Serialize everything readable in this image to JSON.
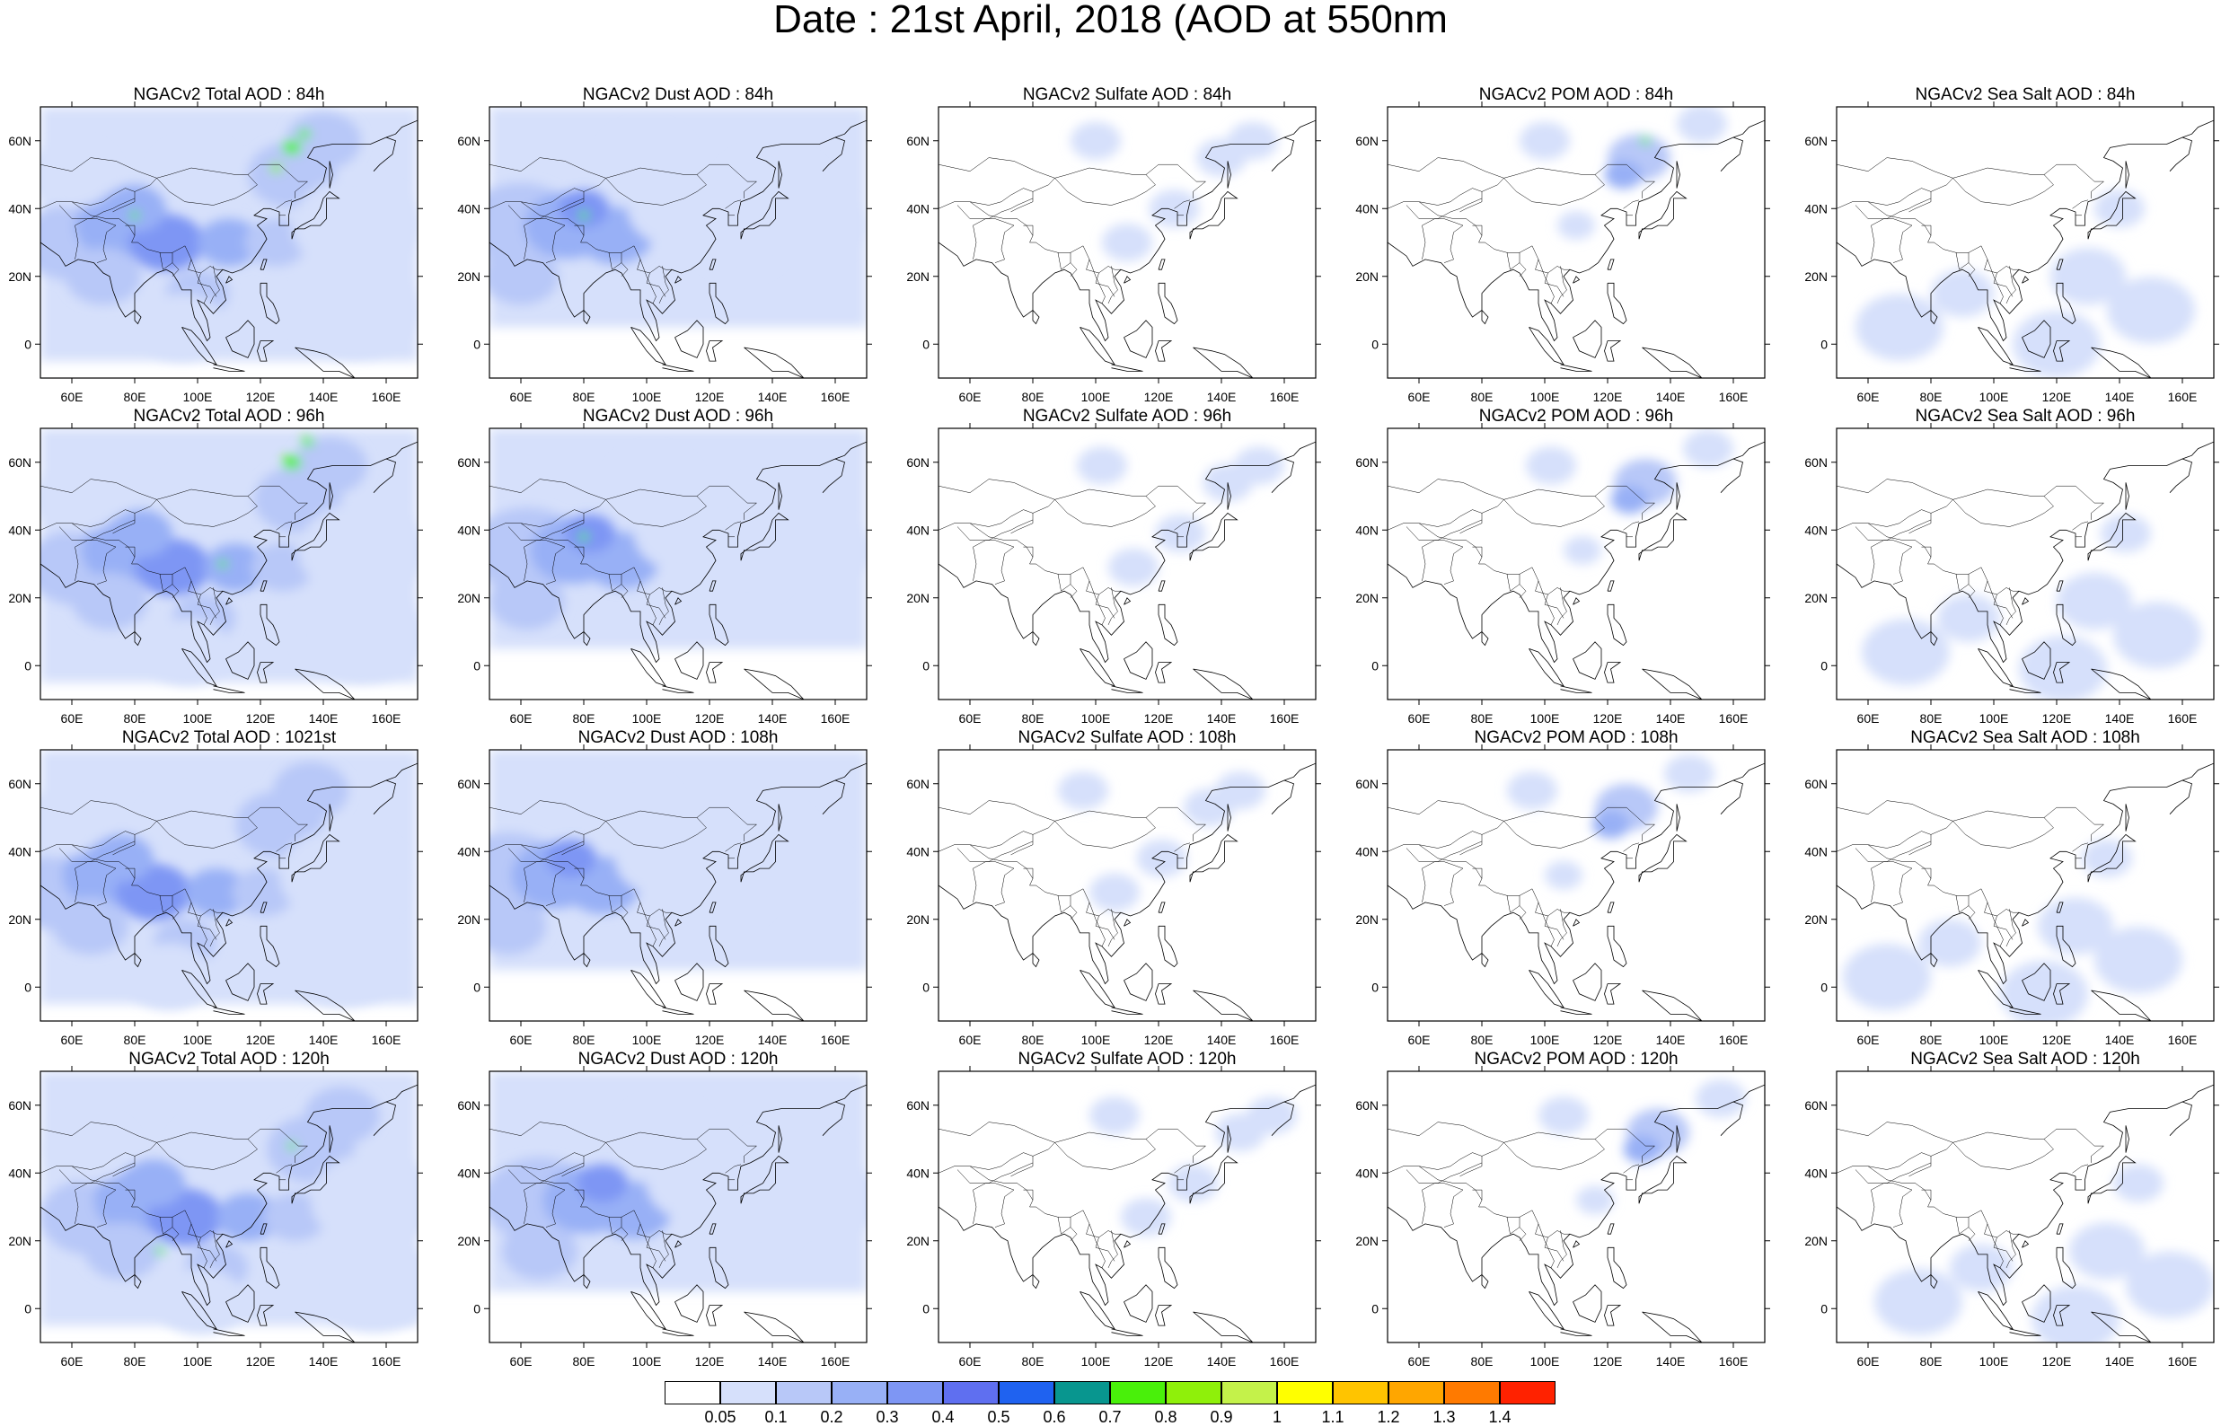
{
  "title": "Date : 21st April, 2018 (AOD at 550nm",
  "lon_ticks": [
    "60E",
    "80E",
    "100E",
    "120E",
    "140E",
    "160E"
  ],
  "lat_ticks": [
    "60N",
    "40N",
    "20N",
    "0"
  ],
  "panels": [
    [
      "NGACv2 Total AOD : 84h",
      "NGACv2 Dust AOD : 84h",
      "NGACv2 Sulfate AOD : 84h",
      "NGACv2 POM AOD : 84h",
      "NGACv2 Sea Salt AOD : 84h"
    ],
    [
      "NGACv2 Total AOD : 96h",
      "NGACv2 Dust AOD : 96h",
      "NGACv2 Sulfate AOD : 96h",
      "NGACv2 POM AOD : 96h",
      "NGACv2 Sea Salt AOD : 96h"
    ],
    [
      "NGACv2 Total AOD : 1021st",
      "NGACv2 Dust AOD : 108h",
      "NGACv2 Sulfate AOD : 108h",
      "NGACv2 POM AOD : 108h",
      "NGACv2 Sea Salt AOD : 108h"
    ],
    [
      "NGACv2 Total AOD : 120h",
      "NGACv2 Dust AOD : 120h",
      "NGACv2 Sulfate AOD : 120h",
      "NGACv2 POM AOD : 120h",
      "NGACv2 Sea Salt  AOD : 120h"
    ]
  ],
  "colorbar": {
    "colors": [
      "#ffffff",
      "#d6e0fb",
      "#b8c8f8",
      "#98b0f6",
      "#7e96f4",
      "#5f6ff0",
      "#1f62f0",
      "#08968f",
      "#49f00a",
      "#8ff00a",
      "#c4f24a",
      "#ffff00",
      "#ffc400",
      "#ffa600",
      "#ff7a00",
      "#ff2200"
    ],
    "labels": [
      "0.05",
      "0.1",
      "0.2",
      "0.3",
      "0.4",
      "0.5",
      "0.6",
      "0.7",
      "0.8",
      "0.9",
      "1",
      "1.1",
      "1.2",
      "1.3",
      "1.4"
    ]
  },
  "colors": {
    "land_outline": "#000000",
    "light_blue": "#d6e0fb",
    "mid_blue": "#98b0f6",
    "dark_blue": "#5f6ff0",
    "green": "#49f00a"
  }
}
